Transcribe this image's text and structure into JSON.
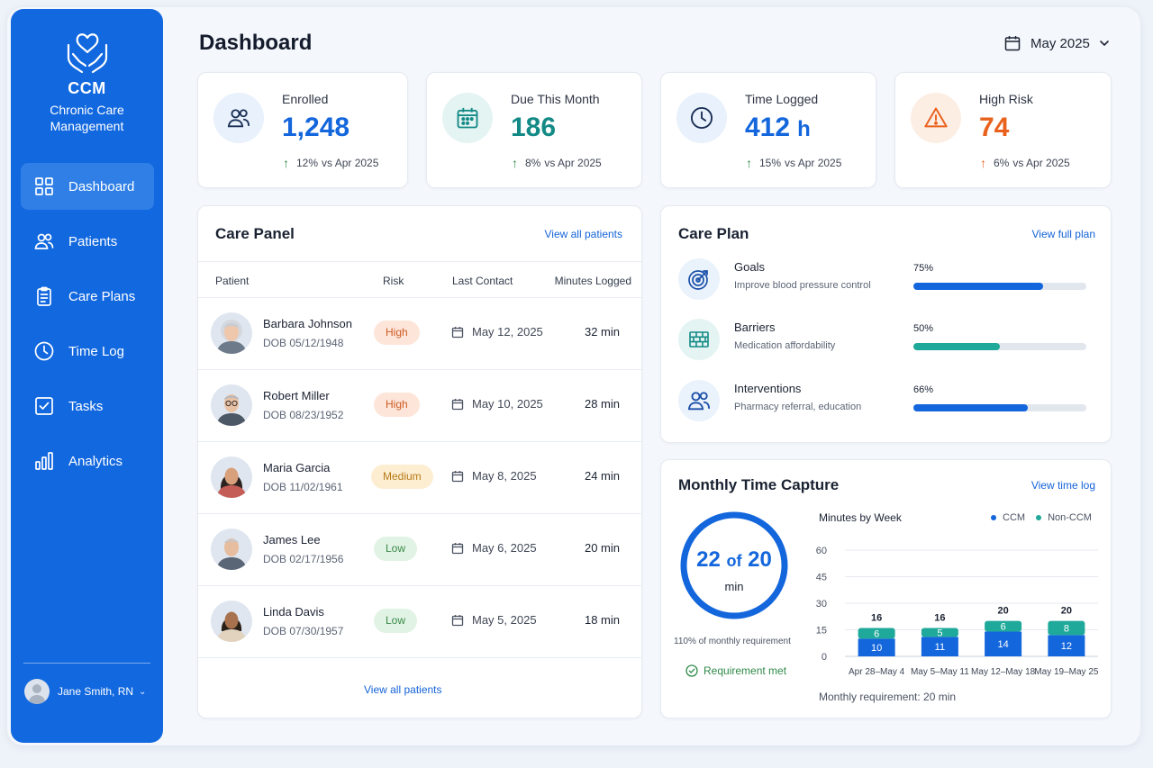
{
  "sidebar": {
    "brand_title": "CCM",
    "brand_subtitle": "Chronic Care Management",
    "items": [
      {
        "label": "Dashboard",
        "icon": "grid-icon",
        "active": true
      },
      {
        "label": "Patients",
        "icon": "users-icon"
      },
      {
        "label": "Care Plans",
        "icon": "clipboard-icon"
      },
      {
        "label": "Time Log",
        "icon": "clock-icon"
      },
      {
        "label": "Tasks",
        "icon": "checkbox-icon"
      },
      {
        "label": "Analytics",
        "icon": "bar-chart-icon"
      }
    ],
    "user_name": "Jane Smith, RN",
    "user_menu_glyph": "⌄"
  },
  "header": {
    "title": "Dashboard",
    "month": "May 2025"
  },
  "stats": [
    {
      "label": "Enrolled",
      "value": "1,248",
      "unit": "",
      "delta": "12%",
      "delta_text": "vs Apr 2025",
      "color": "#1366dc",
      "icon": "users-icon"
    },
    {
      "label": "Due This Month",
      "value": "186",
      "unit": "",
      "delta": "8%",
      "delta_text": "vs Apr 2025",
      "color": "#138a86",
      "icon": "calendar-icon"
    },
    {
      "label": "Time Logged",
      "value": "412",
      "unit": "h",
      "delta": "15%",
      "delta_text": "vs Apr 2025",
      "color": "#1366dc",
      "icon": "clock-icon"
    },
    {
      "label": "High Risk",
      "value": "74",
      "unit": "",
      "delta": "6%",
      "delta_text": "vs Apr 2025",
      "color": "#e8621e",
      "icon": "warning-icon"
    }
  ],
  "care_panel": {
    "title": "Care Panel",
    "link": "View all patients",
    "footer_link": "View all patients",
    "columns": [
      "Patient",
      "Risk",
      "Last Contact",
      "Minutes Logged"
    ],
    "rows": [
      {
        "name": "Barbara Johnson",
        "dob": "DOB 05/12/1948",
        "risk": "High",
        "risk_level": "high",
        "last_contact": "May 12, 2025",
        "minutes": "32 min"
      },
      {
        "name": "Robert Miller",
        "dob": "DOB 08/23/1952",
        "risk": "High",
        "risk_level": "high",
        "last_contact": "May 10, 2025",
        "minutes": "28 min"
      },
      {
        "name": "Maria Garcia",
        "dob": "DOB 11/02/1961",
        "risk": "Medium",
        "risk_level": "medium",
        "last_contact": "May 8, 2025",
        "minutes": "24 min"
      },
      {
        "name": "James Lee",
        "dob": "DOB 02/17/1956",
        "risk": "Low",
        "risk_level": "low",
        "last_contact": "May 6, 2025",
        "minutes": "20 min"
      },
      {
        "name": "Linda Davis",
        "dob": "DOB 07/30/1957",
        "risk": "Low",
        "risk_level": "low",
        "last_contact": "May 5, 2025",
        "minutes": "18 min"
      }
    ]
  },
  "care_plan": {
    "title": "Care Plan",
    "link": "View full plan",
    "items": [
      {
        "name": "Goals",
        "desc": "Improve blood pressure control",
        "pct_label": "75%",
        "pct": 0.75,
        "color": "#1366dc",
        "icon": "target-icon"
      },
      {
        "name": "Barriers",
        "desc": "Medication affordability",
        "pct_label": "50%",
        "pct": 0.5,
        "color": "#1fa99a",
        "icon": "brick-wall-icon"
      },
      {
        "name": "Interventions",
        "desc": "Pharmacy referral, education",
        "pct_label": "66%",
        "pct": 0.66,
        "color": "#1366dc",
        "icon": "users-icon"
      }
    ]
  },
  "time_capture": {
    "title": "Monthly Time Capture",
    "link": "View time log",
    "ring_value": "22",
    "ring_of": "of",
    "ring_target": "20",
    "ring_unit": "min",
    "ring_caption": "110% of monthly requirement",
    "requirement_status": "Requirement met",
    "requirement_note": "Monthly requirement: 20 min"
  },
  "chart_data": {
    "type": "bar",
    "title": "Minutes by Week",
    "stacked": true,
    "categories": [
      "Apr 28–May 4",
      "May 5–May 11",
      "May 12–May 18",
      "May 19–May 25"
    ],
    "series": [
      {
        "name": "CCM",
        "values": [
          10,
          11,
          14,
          12
        ],
        "color": "#1366dc"
      },
      {
        "name": "Non-CCM",
        "values": [
          6,
          5,
          6,
          8
        ],
        "color": "#1fa99a"
      }
    ],
    "totals": [
      16,
      16,
      20,
      20
    ],
    "yticks": [
      0,
      15,
      30,
      45,
      60
    ],
    "ylim": [
      0,
      60
    ],
    "legend": "top-right",
    "grid": true
  }
}
